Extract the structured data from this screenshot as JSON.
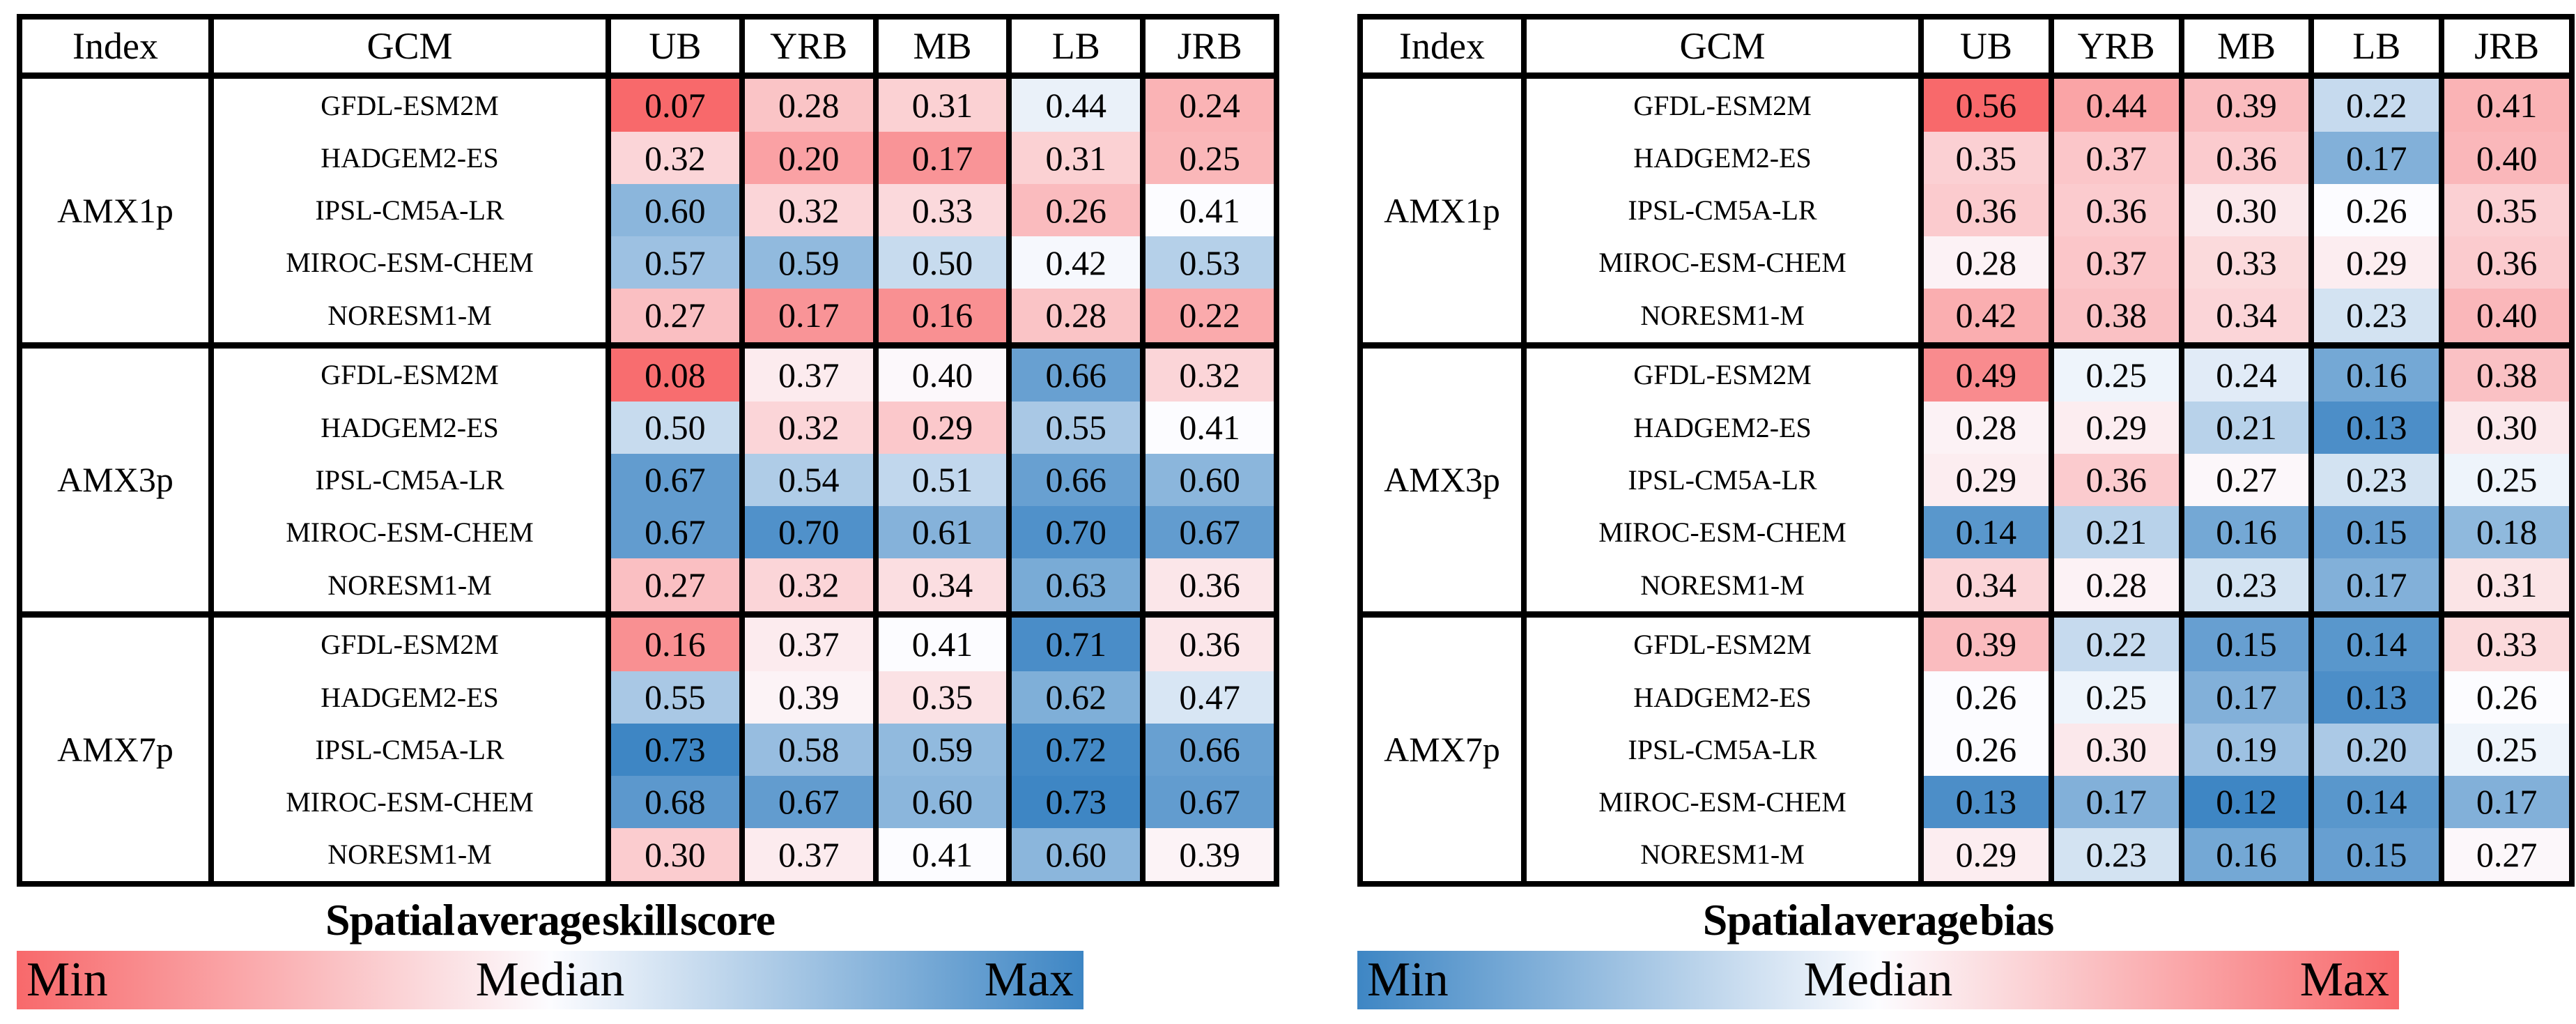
{
  "colors": {
    "border": "#000000",
    "text": "#000000",
    "background": "#FFFFFF",
    "scale_red": "#F8696B",
    "scale_white": "#FCFCFF",
    "scale_blue": "#3E86C4"
  },
  "chart_data": [
    {
      "type": "heatmap",
      "id": "skill_score",
      "title": "Spatial average skill score",
      "columns": [
        "Index",
        "GCM",
        "UB",
        "YRB",
        "MB",
        "LB",
        "JRB"
      ],
      "scale": {
        "min_color": "#F8696B",
        "mid_color": "#FCFCFF",
        "max_color": "#3E86C4",
        "anchors": "min / median / max of all table values"
      },
      "colorbar": {
        "min": "Min",
        "mid": "Median",
        "max": "Max"
      },
      "groups": [
        {
          "index": "AMX1p",
          "rows": [
            {
              "gcm": "GFDL-ESM2M",
              "values": [
                "0.07",
                "0.28",
                "0.31",
                "0.44",
                "0.24"
              ]
            },
            {
              "gcm": "HADGEM2-ES",
              "values": [
                "0.32",
                "0.20",
                "0.17",
                "0.31",
                "0.25"
              ]
            },
            {
              "gcm": "IPSL-CM5A-LR",
              "values": [
                "0.60",
                "0.32",
                "0.33",
                "0.26",
                "0.41"
              ]
            },
            {
              "gcm": "MIROC-ESM-CHEM",
              "values": [
                "0.57",
                "0.59",
                "0.50",
                "0.42",
                "0.53"
              ]
            },
            {
              "gcm": "NORESM1-M",
              "values": [
                "0.27",
                "0.17",
                "0.16",
                "0.28",
                "0.22"
              ]
            }
          ]
        },
        {
          "index": "AMX3p",
          "rows": [
            {
              "gcm": "GFDL-ESM2M",
              "values": [
                "0.08",
                "0.37",
                "0.40",
                "0.66",
                "0.32"
              ]
            },
            {
              "gcm": "HADGEM2-ES",
              "values": [
                "0.50",
                "0.32",
                "0.29",
                "0.55",
                "0.41"
              ]
            },
            {
              "gcm": "IPSL-CM5A-LR",
              "values": [
                "0.67",
                "0.54",
                "0.51",
                "0.66",
                "0.60"
              ]
            },
            {
              "gcm": "MIROC-ESM-CHEM",
              "values": [
                "0.67",
                "0.70",
                "0.61",
                "0.70",
                "0.67"
              ]
            },
            {
              "gcm": "NORESM1-M",
              "values": [
                "0.27",
                "0.32",
                "0.34",
                "0.63",
                "0.36"
              ]
            }
          ]
        },
        {
          "index": "AMX7p",
          "rows": [
            {
              "gcm": "GFDL-ESM2M",
              "values": [
                "0.16",
                "0.37",
                "0.41",
                "0.71",
                "0.36"
              ]
            },
            {
              "gcm": "HADGEM2-ES",
              "values": [
                "0.55",
                "0.39",
                "0.35",
                "0.62",
                "0.47"
              ]
            },
            {
              "gcm": "IPSL-CM5A-LR",
              "values": [
                "0.73",
                "0.58",
                "0.59",
                "0.72",
                "0.66"
              ]
            },
            {
              "gcm": "MIROC-ESM-CHEM",
              "values": [
                "0.68",
                "0.67",
                "0.60",
                "0.73",
                "0.67"
              ]
            },
            {
              "gcm": "NORESM1-M",
              "values": [
                "0.30",
                "0.37",
                "0.41",
                "0.60",
                "0.39"
              ]
            }
          ]
        }
      ]
    },
    {
      "type": "heatmap",
      "id": "bias",
      "title": "Spatial average bias",
      "columns": [
        "Index",
        "GCM",
        "UB",
        "YRB",
        "MB",
        "LB",
        "JRB"
      ],
      "scale": {
        "min_color": "#3E86C4",
        "mid_color": "#FCFCFF",
        "max_color": "#F8696B",
        "anchors": "min / median / max of all table values"
      },
      "colorbar": {
        "min": "Min",
        "mid": "Median",
        "max": "Max"
      },
      "groups": [
        {
          "index": "AMX1p",
          "rows": [
            {
              "gcm": "GFDL-ESM2M",
              "values": [
                "0.56",
                "0.44",
                "0.39",
                "0.22",
                "0.41"
              ]
            },
            {
              "gcm": "HADGEM2-ES",
              "values": [
                "0.35",
                "0.37",
                "0.36",
                "0.17",
                "0.40"
              ]
            },
            {
              "gcm": "IPSL-CM5A-LR",
              "values": [
                "0.36",
                "0.36",
                "0.30",
                "0.26",
                "0.35"
              ]
            },
            {
              "gcm": "MIROC-ESM-CHEM",
              "values": [
                "0.28",
                "0.37",
                "0.33",
                "0.29",
                "0.36"
              ]
            },
            {
              "gcm": "NORESM1-M",
              "values": [
                "0.42",
                "0.38",
                "0.34",
                "0.23",
                "0.40"
              ]
            }
          ]
        },
        {
          "index": "AMX3p",
          "rows": [
            {
              "gcm": "GFDL-ESM2M",
              "values": [
                "0.49",
                "0.25",
                "0.24",
                "0.16",
                "0.38"
              ]
            },
            {
              "gcm": "HADGEM2-ES",
              "values": [
                "0.28",
                "0.29",
                "0.21",
                "0.13",
                "0.30"
              ]
            },
            {
              "gcm": "IPSL-CM5A-LR",
              "values": [
                "0.29",
                "0.36",
                "0.27",
                "0.23",
                "0.25"
              ]
            },
            {
              "gcm": "MIROC-ESM-CHEM",
              "values": [
                "0.14",
                "0.21",
                "0.16",
                "0.15",
                "0.18"
              ]
            },
            {
              "gcm": "NORESM1-M",
              "values": [
                "0.34",
                "0.28",
                "0.23",
                "0.17",
                "0.31"
              ]
            }
          ]
        },
        {
          "index": "AMX7p",
          "rows": [
            {
              "gcm": "GFDL-ESM2M",
              "values": [
                "0.39",
                "0.22",
                "0.15",
                "0.14",
                "0.33"
              ]
            },
            {
              "gcm": "HADGEM2-ES",
              "values": [
                "0.26",
                "0.25",
                "0.17",
                "0.13",
                "0.26"
              ]
            },
            {
              "gcm": "IPSL-CM5A-LR",
              "values": [
                "0.26",
                "0.30",
                "0.19",
                "0.20",
                "0.25"
              ]
            },
            {
              "gcm": "MIROC-ESM-CHEM",
              "values": [
                "0.13",
                "0.17",
                "0.12",
                "0.14",
                "0.17"
              ]
            },
            {
              "gcm": "NORESM1-M",
              "values": [
                "0.29",
                "0.23",
                "0.16",
                "0.15",
                "0.27"
              ]
            }
          ]
        }
      ]
    }
  ]
}
